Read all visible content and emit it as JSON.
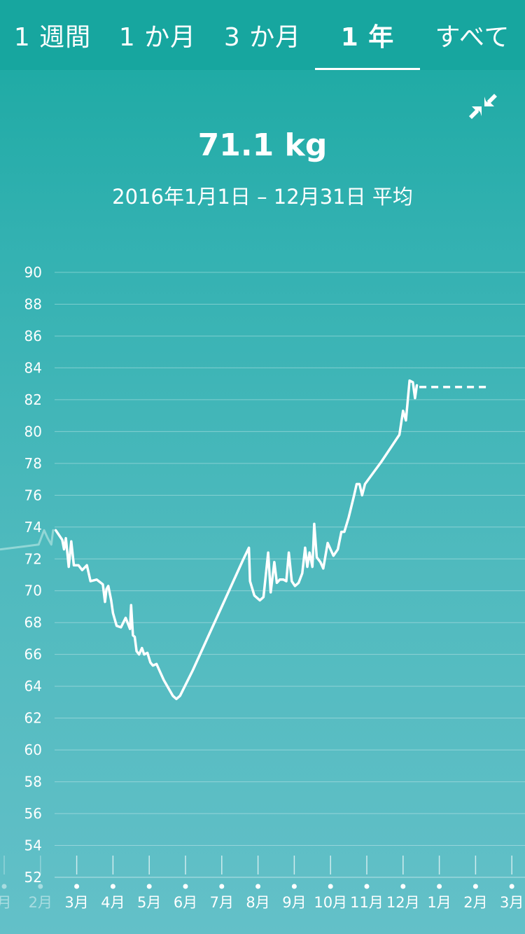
{
  "tabs": [
    {
      "label": "1 週間",
      "active": false
    },
    {
      "label": "1 か月",
      "active": false
    },
    {
      "label": "3 か月",
      "active": false
    },
    {
      "label": "1 年",
      "active": true
    },
    {
      "label": "すべて",
      "active": false
    }
  ],
  "summary": {
    "value": "71.1 kg",
    "period": "2016年1月1日 – 12月31日 平均"
  },
  "icons": {
    "collapse": "collapse-arrows-icon"
  },
  "colors": {
    "background_top": "#18a8a0",
    "background_bottom": "#63c0c8",
    "line": "#ffffff",
    "faded_line": "#a8e0dd"
  },
  "chart_data": {
    "type": "line",
    "ylim": [
      52,
      90
    ],
    "y_ticks": [
      90,
      88,
      86,
      84,
      82,
      80,
      78,
      76,
      74,
      72,
      70,
      68,
      66,
      64,
      62,
      60,
      58,
      56,
      54,
      52
    ],
    "x_ticks": [
      {
        "label": "月",
        "faded": true
      },
      {
        "label": "2月",
        "faded": true
      },
      {
        "label": "3月",
        "faded": false
      },
      {
        "label": "4月",
        "faded": false
      },
      {
        "label": "5月",
        "faded": false
      },
      {
        "label": "6月",
        "faded": false
      },
      {
        "label": "7月",
        "faded": false
      },
      {
        "label": "8月",
        "faded": false
      },
      {
        "label": "9月",
        "faded": false
      },
      {
        "label": "10月",
        "faded": false
      },
      {
        "label": "11月",
        "faded": false
      },
      {
        "label": "12月",
        "faded": false
      },
      {
        "label": "1月",
        "faded": false
      },
      {
        "label": "2月",
        "faded": false
      },
      {
        "label": "3月",
        "faded": false
      }
    ],
    "grid": true,
    "series": [
      {
        "style": "faded",
        "points": [
          [
            -0.1,
            72.6
          ],
          [
            0.6,
            72.8
          ],
          [
            0.95,
            72.9
          ],
          [
            1.1,
            73.8
          ],
          [
            1.2,
            73.3
          ],
          [
            1.3,
            72.9
          ],
          [
            1.35,
            73.8
          ]
        ]
      },
      {
        "style": "solid",
        "points": [
          [
            1.42,
            73.8
          ],
          [
            1.6,
            73.2
          ],
          [
            1.65,
            72.6
          ],
          [
            1.7,
            73.3
          ],
          [
            1.78,
            71.5
          ],
          [
            1.85,
            73.1
          ],
          [
            1.92,
            71.6
          ],
          [
            2.05,
            71.6
          ],
          [
            2.15,
            71.3
          ],
          [
            2.28,
            71.6
          ],
          [
            2.38,
            70.6
          ],
          [
            2.55,
            70.7
          ],
          [
            2.72,
            70.4
          ],
          [
            2.78,
            69.3
          ],
          [
            2.82,
            70.1
          ],
          [
            2.87,
            70.3
          ],
          [
            2.95,
            69.4
          ],
          [
            3.0,
            68.6
          ],
          [
            3.1,
            67.8
          ],
          [
            3.22,
            67.7
          ],
          [
            3.35,
            68.3
          ],
          [
            3.47,
            67.6
          ],
          [
            3.5,
            69.1
          ],
          [
            3.55,
            67.2
          ],
          [
            3.6,
            67.1
          ],
          [
            3.65,
            66.2
          ],
          [
            3.72,
            66.0
          ],
          [
            3.8,
            66.4
          ],
          [
            3.86,
            66.0
          ],
          [
            3.95,
            66.1
          ],
          [
            4.03,
            65.5
          ],
          [
            4.1,
            65.3
          ],
          [
            4.2,
            65.4
          ],
          [
            4.3,
            64.9
          ],
          [
            4.4,
            64.4
          ],
          [
            4.55,
            63.8
          ],
          [
            4.65,
            63.4
          ],
          [
            4.75,
            63.2
          ],
          [
            4.85,
            63.4
          ],
          [
            5.2,
            65.0
          ],
          [
            5.6,
            67.0
          ],
          [
            6.0,
            69.0
          ],
          [
            6.4,
            71.0
          ],
          [
            6.58,
            71.9
          ],
          [
            6.75,
            72.7
          ],
          [
            6.78,
            70.6
          ],
          [
            6.9,
            69.7
          ],
          [
            7.05,
            69.4
          ],
          [
            7.15,
            69.6
          ],
          [
            7.28,
            72.4
          ],
          [
            7.35,
            69.9
          ],
          [
            7.45,
            71.8
          ],
          [
            7.52,
            70.5
          ],
          [
            7.6,
            70.7
          ],
          [
            7.7,
            70.7
          ],
          [
            7.78,
            70.6
          ],
          [
            7.85,
            72.4
          ],
          [
            7.93,
            70.6
          ],
          [
            8.02,
            70.3
          ],
          [
            8.12,
            70.5
          ],
          [
            8.22,
            71.1
          ],
          [
            8.3,
            72.7
          ],
          [
            8.36,
            71.5
          ],
          [
            8.42,
            72.4
          ],
          [
            8.5,
            71.5
          ],
          [
            8.55,
            74.2
          ],
          [
            8.62,
            72.1
          ],
          [
            8.72,
            71.8
          ],
          [
            8.8,
            71.4
          ],
          [
            8.92,
            73.0
          ],
          [
            9.08,
            72.2
          ],
          [
            9.2,
            72.6
          ],
          [
            9.3,
            73.7
          ],
          [
            9.38,
            73.7
          ],
          [
            9.5,
            74.6
          ],
          [
            9.65,
            76.0
          ],
          [
            9.72,
            76.7
          ],
          [
            9.8,
            76.7
          ],
          [
            9.87,
            76.0
          ],
          [
            9.95,
            76.7
          ],
          [
            10.4,
            78.1
          ],
          [
            10.9,
            79.8
          ],
          [
            11.0,
            81.3
          ],
          [
            11.08,
            80.7
          ],
          [
            11.18,
            83.2
          ],
          [
            11.27,
            83.1
          ],
          [
            11.33,
            82.1
          ],
          [
            11.38,
            82.9
          ]
        ]
      },
      {
        "style": "dashed",
        "points": [
          [
            11.45,
            82.8
          ],
          [
            13.4,
            82.8
          ]
        ]
      }
    ]
  }
}
